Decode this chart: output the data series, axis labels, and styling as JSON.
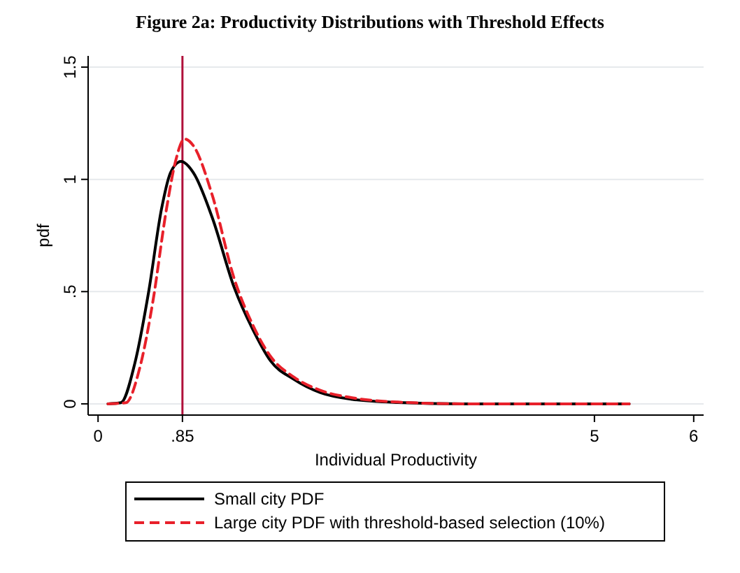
{
  "chart_data": {
    "type": "line",
    "title": "Figure 2a: Productivity Distributions with Threshold Effects",
    "xlabel": "Individual Productivity",
    "ylabel": "pdf",
    "xlim": [
      -0.1,
      6.1
    ],
    "ylim": [
      -0.05,
      1.55
    ],
    "xticks": [
      0,
      {
        "value": 0.85,
        "label": ".85"
      },
      5,
      6
    ],
    "yticks": [
      0,
      {
        "value": 0.5,
        "label": ".5"
      },
      1,
      1.5
    ],
    "grid": "y",
    "legend": "bottom",
    "ref_lines": [
      {
        "axis": "x",
        "value": 0.85,
        "color": "#b0103a"
      }
    ],
    "series": [
      {
        "name": "Small city PDF",
        "color": "#000000",
        "line_style": "solid",
        "x": [
          0.1,
          0.23,
          0.37,
          0.51,
          0.64,
          0.73,
          0.836,
          0.96,
          1.15,
          1.37,
          1.56,
          1.74,
          1.97,
          2.24,
          2.56,
          3.02,
          3.7,
          5.35
        ],
        "values": [
          0,
          0.005,
          0.18,
          0.5,
          0.87,
          1.03,
          1.08,
          1.03,
          0.83,
          0.52,
          0.33,
          0.19,
          0.11,
          0.05,
          0.02,
          0.006,
          0,
          0
        ]
      },
      {
        "name": "Large city PDF with threshold-based selection (10%)",
        "color": "#e8202a",
        "line_style": "dashed",
        "x": [
          0.1,
          0.28,
          0.42,
          0.55,
          0.69,
          0.78,
          0.87,
          0.96,
          1.15,
          1.37,
          1.56,
          1.74,
          1.97,
          2.24,
          2.56,
          3.02,
          3.7,
          5.35
        ],
        "values": [
          0,
          0.005,
          0.16,
          0.45,
          0.87,
          1.08,
          1.18,
          1.15,
          0.93,
          0.56,
          0.35,
          0.21,
          0.12,
          0.06,
          0.027,
          0.008,
          0,
          0
        ]
      }
    ]
  }
}
